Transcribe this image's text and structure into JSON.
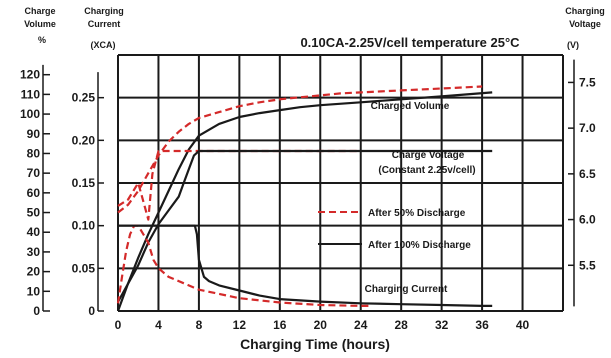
{
  "chart_data": {
    "type": "line",
    "title": "0.10CA-2.25V/cell temperature 25°C",
    "xlabel": "Charging Time (hours)",
    "xlim": [
      0,
      44
    ],
    "x_ticks": [
      0,
      4,
      8,
      12,
      16,
      20,
      24,
      28,
      32,
      36,
      40
    ],
    "axes": {
      "volume": {
        "label_lines": [
          "Charge",
          "Volume",
          "%"
        ],
        "lim": [
          0,
          130
        ],
        "ticks": [
          0,
          10,
          20,
          30,
          40,
          50,
          60,
          70,
          80,
          90,
          100,
          110,
          120
        ]
      },
      "current": {
        "label_lines": [
          "Charging",
          "Current"
        ],
        "unit": "(XCA)",
        "lim": [
          0,
          0.3
        ],
        "ticks": [
          "0",
          "0.05",
          "0.10",
          "0.15",
          "0.20",
          "0.25"
        ]
      },
      "voltage": {
        "label_lines": [
          "Charging",
          "Voltage"
        ],
        "unit": "(V)",
        "lim": [
          5.0,
          7.8
        ],
        "ticks": [
          "5.5",
          "6.0",
          "6.5",
          "7.0",
          "7.5"
        ]
      }
    },
    "grid": true,
    "legend": {
      "position": "center-right",
      "entries": [
        {
          "label": "After 50% Discharge",
          "style": "dashed",
          "color": "#d42a2a"
        },
        {
          "label": "After 100% Discharge",
          "style": "solid",
          "color": "#1a1a1a"
        }
      ]
    },
    "annotations": {
      "charged_volume": "Charged Volume",
      "charge_voltage": "Charge Voltage",
      "constant_note": "(Constant 2.25v/cell)",
      "charging_current": "Charging Current"
    },
    "series": [
      {
        "name": "Charged Volume",
        "group": "After 50% Discharge",
        "axis": "volume",
        "x": [
          0,
          1,
          2,
          3,
          4,
          5,
          6,
          7,
          8,
          10,
          12,
          14,
          16,
          18,
          20,
          22,
          24,
          26,
          28,
          32,
          36
        ],
        "y": [
          50,
          54,
          61,
          70,
          79,
          86,
          91,
          95,
          98,
          101,
          104,
          106,
          107.5,
          108.5,
          109.5,
          110.5,
          111,
          111.5,
          112,
          113,
          114
        ]
      },
      {
        "name": "Charged Volume",
        "group": "After 100% Discharge",
        "axis": "volume",
        "x": [
          0,
          1,
          2,
          3,
          4,
          5,
          6,
          7,
          8,
          10,
          12,
          14,
          16,
          18,
          20,
          24,
          28,
          32,
          37
        ],
        "y": [
          0,
          14,
          27,
          39,
          50,
          61,
          72,
          82,
          89,
          95,
          98.5,
          100.5,
          102,
          103.5,
          104.5,
          106,
          107.5,
          109,
          111
        ]
      },
      {
        "name": "Charge Voltage",
        "group": "After 50% Discharge",
        "axis": "voltage",
        "x": [
          0,
          1,
          2,
          2.5,
          3,
          3.4,
          4,
          8,
          24
        ],
        "y": [
          6.15,
          6.22,
          6.4,
          6.2,
          6.0,
          6.5,
          6.75,
          6.75,
          6.75
        ]
      },
      {
        "name": "Charge Voltage",
        "group": "After 100% Discharge",
        "axis": "voltage",
        "x": [
          0,
          2,
          3,
          4,
          5,
          6,
          6.5,
          7,
          7.5,
          8,
          37
        ],
        "y": [
          5.1,
          5.5,
          5.75,
          5.95,
          6.1,
          6.25,
          6.4,
          6.55,
          6.7,
          6.75,
          6.75
        ]
      },
      {
        "name": "Charging Current",
        "group": "After 50% Discharge",
        "axis": "current",
        "x": [
          0,
          0.4,
          0.8,
          1.2,
          1.6,
          2,
          2.5,
          3,
          3.5,
          4,
          5,
          6,
          8,
          10,
          12,
          16,
          20,
          24,
          25
        ],
        "y": [
          0.009,
          0.04,
          0.07,
          0.09,
          0.1,
          0.1,
          0.09,
          0.08,
          0.06,
          0.05,
          0.04,
          0.035,
          0.025,
          0.02,
          0.015,
          0.01,
          0.007,
          0.006,
          0.006
        ]
      },
      {
        "name": "Charging Current",
        "group": "After 100% Discharge",
        "axis": "current",
        "x": [
          0,
          7.6,
          7.8,
          8,
          8.5,
          9,
          10,
          12,
          14,
          16,
          20,
          24,
          28,
          32,
          36,
          37
        ],
        "y": [
          0.1,
          0.1,
          0.09,
          0.06,
          0.04,
          0.035,
          0.03,
          0.024,
          0.018,
          0.014,
          0.011,
          0.009,
          0.008,
          0.007,
          0.006,
          0.006
        ]
      }
    ]
  }
}
